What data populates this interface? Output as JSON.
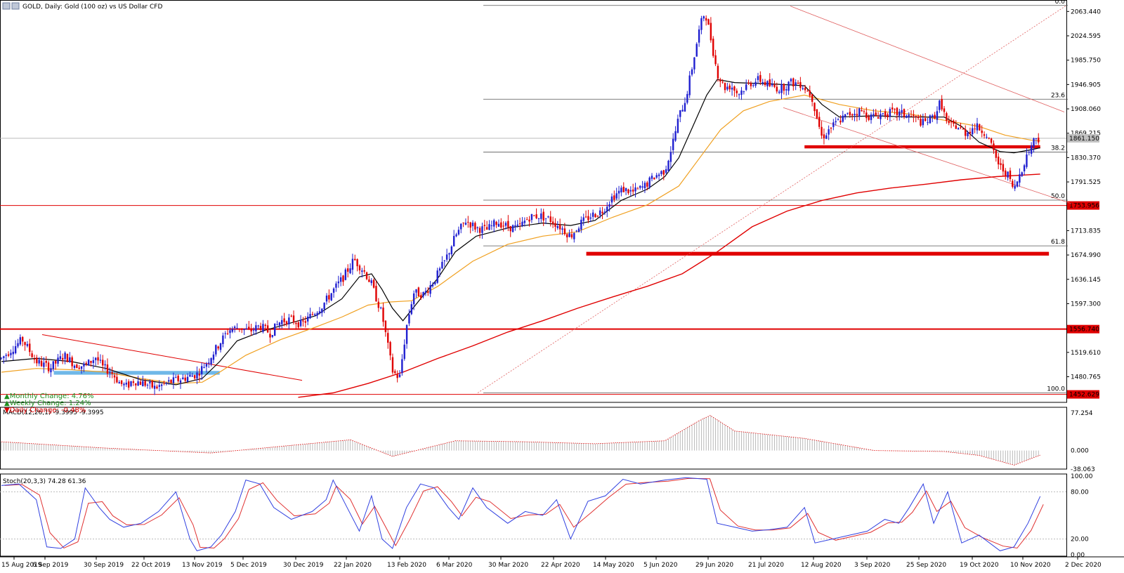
{
  "window_title": "GOLD, Daily:  Gold (100 oz) vs US Dollar CFD",
  "macd_label": "MACD(12,26,1) -9.3995 -9.3995",
  "stoch_label": "Stoch(20,3,3) 74.28 61.36",
  "info_box": [
    {
      "arrow": "▲",
      "text": "Monthly Change: 4.76%",
      "color": "#1f8f1f"
    },
    {
      "arrow": "▲",
      "text": "Weekly Change: 1.24%",
      "color": "#1f8f1f"
    },
    {
      "arrow": "▼",
      "text": "Daily Change: -0.48%",
      "color": "#e00000"
    }
  ],
  "chart_data": {
    "type": "candlestick",
    "symbol": "GOLD",
    "timeframe": "Daily",
    "x_tick_labels": [
      "15 Aug 2019",
      "6 Sep 2019",
      "30 Sep 2019",
      "22 Oct 2019",
      "13 Nov 2019",
      "5 Dec 2019",
      "30 Dec 2019",
      "22 Jan 2020",
      "13 Feb 2020",
      "6 Mar 2020",
      "30 Mar 2020",
      "22 Apr 2020",
      "14 May 2020",
      "5 Jun 2020",
      "29 Jun 2020",
      "21 Jul 2020",
      "12 Aug 2020",
      "3 Sep 2020",
      "25 Sep 2020",
      "19 Oct 2020",
      "10 Nov 2020",
      "2 Dec 2020"
    ],
    "y_tick_labels": [
      "2063.440",
      "2024.595",
      "1985.750",
      "1946.905",
      "1908.060",
      "1869.215",
      "1830.370",
      "1791.525",
      "1713.835",
      "1674.990",
      "1636.145",
      "1597.300",
      "1519.610",
      "1480.765"
    ],
    "ylim": [
      1441,
      2075
    ],
    "current_price": "1861.150",
    "colors": {
      "bull": "#1f1fd0",
      "bear": "#e00000",
      "ma_fast": "#000000",
      "ma_mid": "#f0a020",
      "ma_slow": "#e00000"
    },
    "price_path": [
      [
        0,
        1510
      ],
      [
        12,
        1540
      ],
      [
        20,
        1505
      ],
      [
        28,
        1495
      ],
      [
        36,
        1515
      ],
      [
        42,
        1500
      ],
      [
        48,
        1498
      ],
      [
        54,
        1512
      ],
      [
        58,
        1496
      ],
      [
        63,
        1488
      ],
      [
        68,
        1470
      ],
      [
        72,
        1465
      ],
      [
        75,
        1475
      ],
      [
        82,
        1470
      ],
      [
        88,
        1463
      ],
      [
        96,
        1472
      ],
      [
        104,
        1478
      ],
      [
        112,
        1485
      ],
      [
        118,
        1505
      ],
      [
        124,
        1530
      ],
      [
        130,
        1555
      ],
      [
        136,
        1560
      ],
      [
        142,
        1553
      ],
      [
        148,
        1562
      ],
      [
        154,
        1550
      ],
      [
        160,
        1570
      ],
      [
        166,
        1572
      ],
      [
        172,
        1564
      ],
      [
        178,
        1580
      ],
      [
        184,
        1595
      ],
      [
        190,
        1618
      ],
      [
        196,
        1640
      ],
      [
        202,
        1668
      ],
      [
        208,
        1648
      ],
      [
        212,
        1628
      ],
      [
        218,
        1580
      ],
      [
        224,
        1490
      ],
      [
        228,
        1478
      ],
      [
        232,
        1560
      ],
      [
        236,
        1615
      ],
      [
        242,
        1612
      ],
      [
        248,
        1635
      ],
      [
        254,
        1665
      ],
      [
        260,
        1705
      ],
      [
        266,
        1730
      ],
      [
        272,
        1718
      ],
      [
        278,
        1715
      ],
      [
        284,
        1728
      ],
      [
        290,
        1720
      ],
      [
        296,
        1718
      ],
      [
        302,
        1735
      ],
      [
        308,
        1738
      ],
      [
        314,
        1732
      ],
      [
        320,
        1720
      ],
      [
        326,
        1705
      ],
      [
        332,
        1726
      ],
      [
        338,
        1738
      ],
      [
        344,
        1745
      ],
      [
        350,
        1768
      ],
      [
        356,
        1780
      ],
      [
        362,
        1775
      ],
      [
        368,
        1784
      ],
      [
        374,
        1800
      ],
      [
        380,
        1810
      ],
      [
        384,
        1848
      ],
      [
        388,
        1895
      ],
      [
        392,
        1925
      ],
      [
        396,
        1980
      ],
      [
        400,
        2038
      ],
      [
        403,
        2064
      ],
      [
        406,
        2025
      ],
      [
        410,
        1965
      ],
      [
        414,
        1942
      ],
      [
        418,
        1945
      ],
      [
        422,
        1932
      ],
      [
        428,
        1948
      ],
      [
        434,
        1955
      ],
      [
        440,
        1945
      ],
      [
        446,
        1940
      ],
      [
        452,
        1950
      ],
      [
        458,
        1948
      ],
      [
        464,
        1930
      ],
      [
        470,
        1862
      ],
      [
        474,
        1875
      ],
      [
        480,
        1890
      ],
      [
        486,
        1900
      ],
      [
        492,
        1905
      ],
      [
        498,
        1895
      ],
      [
        504,
        1900
      ],
      [
        510,
        1902
      ],
      [
        516,
        1900
      ],
      [
        522,
        1895
      ],
      [
        528,
        1885
      ],
      [
        534,
        1895
      ],
      [
        538,
        1920
      ],
      [
        542,
        1880
      ],
      [
        546,
        1882
      ],
      [
        552,
        1870
      ],
      [
        558,
        1880
      ],
      [
        564,
        1870
      ],
      [
        568,
        1840
      ],
      [
        572,
        1815
      ],
      [
        576,
        1805
      ],
      [
        580,
        1778
      ],
      [
        584,
        1810
      ],
      [
        588,
        1838
      ],
      [
        591,
        1857
      ],
      [
        593,
        1864
      ],
      [
        595,
        1858
      ]
    ],
    "ma_fast": [
      [
        0,
        1505
      ],
      [
        20,
        1510
      ],
      [
        40,
        1505
      ],
      [
        60,
        1494
      ],
      [
        80,
        1476
      ],
      [
        100,
        1468
      ],
      [
        115,
        1478
      ],
      [
        125,
        1505
      ],
      [
        135,
        1538
      ],
      [
        150,
        1554
      ],
      [
        165,
        1566
      ],
      [
        180,
        1578
      ],
      [
        195,
        1605
      ],
      [
        205,
        1640
      ],
      [
        212,
        1645
      ],
      [
        218,
        1620
      ],
      [
        224,
        1590
      ],
      [
        230,
        1570
      ],
      [
        240,
        1605
      ],
      [
        250,
        1638
      ],
      [
        260,
        1680
      ],
      [
        272,
        1705
      ],
      [
        290,
        1718
      ],
      [
        310,
        1726
      ],
      [
        326,
        1722
      ],
      [
        340,
        1730
      ],
      [
        355,
        1762
      ],
      [
        370,
        1780
      ],
      [
        380,
        1800
      ],
      [
        388,
        1830
      ],
      [
        396,
        1880
      ],
      [
        404,
        1930
      ],
      [
        410,
        1955
      ],
      [
        420,
        1950
      ],
      [
        440,
        1948
      ],
      [
        460,
        1945
      ],
      [
        470,
        1915
      ],
      [
        480,
        1895
      ],
      [
        500,
        1897
      ],
      [
        520,
        1895
      ],
      [
        540,
        1895
      ],
      [
        550,
        1880
      ],
      [
        560,
        1855
      ],
      [
        572,
        1840
      ],
      [
        580,
        1838
      ],
      [
        590,
        1843
      ],
      [
        595,
        1846
      ]
    ],
    "ma_mid": [
      [
        0,
        1488
      ],
      [
        20,
        1494
      ],
      [
        40,
        1492
      ],
      [
        60,
        1488
      ],
      [
        80,
        1478
      ],
      [
        100,
        1470
      ],
      [
        115,
        1472
      ],
      [
        125,
        1488
      ],
      [
        140,
        1515
      ],
      [
        160,
        1540
      ],
      [
        180,
        1560
      ],
      [
        195,
        1576
      ],
      [
        210,
        1595
      ],
      [
        222,
        1600
      ],
      [
        235,
        1602
      ],
      [
        250,
        1625
      ],
      [
        270,
        1665
      ],
      [
        290,
        1692
      ],
      [
        310,
        1705
      ],
      [
        330,
        1712
      ],
      [
        350,
        1735
      ],
      [
        370,
        1755
      ],
      [
        388,
        1785
      ],
      [
        400,
        1830
      ],
      [
        412,
        1875
      ],
      [
        425,
        1905
      ],
      [
        440,
        1920
      ],
      [
        460,
        1930
      ],
      [
        480,
        1915
      ],
      [
        500,
        1905
      ],
      [
        520,
        1900
      ],
      [
        540,
        1890
      ],
      [
        560,
        1880
      ],
      [
        575,
        1866
      ],
      [
        590,
        1858
      ],
      [
        595,
        1857
      ]
    ],
    "ma_slow": [
      [
        170,
        1448
      ],
      [
        190,
        1455
      ],
      [
        210,
        1470
      ],
      [
        230,
        1488
      ],
      [
        250,
        1510
      ],
      [
        270,
        1530
      ],
      [
        290,
        1552
      ],
      [
        310,
        1570
      ],
      [
        330,
        1590
      ],
      [
        350,
        1608
      ],
      [
        370,
        1625
      ],
      [
        390,
        1645
      ],
      [
        410,
        1680
      ],
      [
        430,
        1720
      ],
      [
        450,
        1745
      ],
      [
        470,
        1762
      ],
      [
        490,
        1774
      ],
      [
        510,
        1782
      ],
      [
        530,
        1788
      ],
      [
        550,
        1795
      ],
      [
        570,
        1800
      ],
      [
        595,
        1804
      ]
    ],
    "horizontal_levels": [
      {
        "price": 1753.956,
        "label": "1753.956",
        "color": "#e00000",
        "style": "thin"
      },
      {
        "price": 1556.74,
        "label": "1556.740",
        "color": "#e00000",
        "style": "thick"
      },
      {
        "price": 1452.629,
        "label": "1452.629",
        "color": "#e00000",
        "style": "thin"
      }
    ],
    "fibonacci": [
      {
        "level": "0.0",
        "price": 2073
      },
      {
        "level": "23.6",
        "price": 1923.5
      },
      {
        "level": "38.2",
        "price": 1839
      },
      {
        "level": "50.0",
        "price": 1762.5
      },
      {
        "level": "61.8",
        "price": 1689.5
      },
      {
        "level": "100.0",
        "price": 1455
      }
    ],
    "support_zones": [
      {
        "from_bar": 460,
        "to_bar": 595,
        "price_high": 1850,
        "price_low": 1845,
        "color": "#e00000"
      },
      {
        "from_bar": 335,
        "to_bar": 600,
        "price_high": 1680,
        "price_low": 1674,
        "color": "#e00000"
      },
      {
        "from_bar": 30,
        "to_bar": 125,
        "price_high": 1490,
        "price_low": 1484,
        "color": "#6fb8e8"
      }
    ],
    "macd": {
      "label": "MACD(12,26,1)",
      "value": -9.3995,
      "signal": -9.3995,
      "ylim": [
        -38.063,
        77.254
      ],
      "tick_labels": [
        "77.254",
        "0.000",
        "-38.063"
      ]
    },
    "stochastic": {
      "label": "Stoch(20,3,3)",
      "k": 74.28,
      "d": 61.36,
      "ylim": [
        0,
        100
      ],
      "tick_labels": [
        "100.00",
        "80.00",
        "20.00",
        "0.00"
      ]
    }
  }
}
